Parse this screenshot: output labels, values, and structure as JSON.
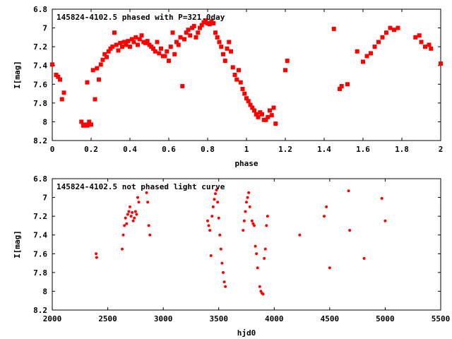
{
  "chart_data": [
    {
      "type": "scatter",
      "title": "145824-4102.5 phased with P=321.0day",
      "xlabel": "phase",
      "ylabel": "I[mag]",
      "xlim": [
        0,
        2
      ],
      "ylim": [
        8.2,
        6.8
      ],
      "y_inverted": true,
      "xticks": [
        "0",
        "0.2",
        "0.4",
        "0.6",
        "0.8",
        "1",
        "1.2",
        "1.4",
        "1.6",
        "1.8",
        "2"
      ],
      "yticks": [
        "6.8",
        "7",
        "7.2",
        "7.4",
        "7.6",
        "7.8",
        "8",
        "8.2"
      ],
      "marker": "star",
      "color": "#ff0000",
      "series": [
        {
          "x": [
            0.0,
            0.02,
            0.03,
            0.04,
            0.05,
            0.06,
            0.15,
            0.16,
            0.17,
            0.18,
            0.19,
            0.2,
            0.18,
            0.22,
            0.21,
            0.23,
            0.24,
            0.25,
            0.26,
            0.27,
            0.28,
            0.29,
            0.3,
            0.31,
            0.32,
            0.33,
            0.34,
            0.35,
            0.36,
            0.37,
            0.38,
            0.39,
            0.4,
            0.41,
            0.42,
            0.43,
            0.44,
            0.45,
            0.46,
            0.47,
            0.48,
            0.49,
            0.5,
            0.51,
            0.52,
            0.53,
            0.54,
            0.55,
            0.56,
            0.57,
            0.58,
            0.59,
            0.6,
            0.61,
            0.62,
            0.63,
            0.64,
            0.65,
            0.66,
            0.67,
            0.68,
            0.69,
            0.7,
            0.71,
            0.72,
            0.73,
            0.74,
            0.75,
            0.76,
            0.77,
            0.78,
            0.79,
            0.8,
            0.81,
            0.82,
            0.83,
            0.84,
            0.85,
            0.86,
            0.87,
            0.88,
            0.89,
            0.9,
            0.91,
            0.92,
            0.93,
            0.94,
            0.95,
            0.96,
            0.97,
            0.98,
            0.99,
            1.0,
            1.01,
            1.02,
            1.03,
            1.04,
            1.05,
            1.06,
            1.07,
            1.08,
            1.09,
            1.1,
            1.11,
            1.12,
            1.13,
            1.14,
            1.15,
            1.2,
            1.21,
            1.45,
            1.48,
            1.49,
            1.52,
            1.57,
            1.6,
            1.62,
            1.64,
            1.66,
            1.68,
            1.7,
            1.72,
            1.74,
            1.76,
            1.78,
            1.87,
            1.89,
            1.9,
            1.92,
            1.94,
            1.95,
            2.0
          ],
          "y": [
            7.39,
            7.5,
            7.52,
            7.55,
            7.76,
            7.69,
            8.0,
            8.04,
            8.03,
            8.04,
            8.0,
            8.03,
            7.58,
            7.76,
            7.45,
            7.43,
            7.55,
            7.39,
            7.34,
            7.28,
            7.31,
            7.25,
            7.22,
            7.2,
            7.05,
            7.18,
            7.24,
            7.16,
            7.2,
            7.15,
            7.18,
            7.14,
            7.2,
            7.12,
            7.15,
            7.1,
            7.18,
            7.12,
            7.08,
            7.15,
            7.16,
            7.14,
            7.18,
            7.2,
            7.22,
            7.25,
            7.15,
            7.27,
            7.22,
            7.3,
            7.3,
            7.25,
            7.35,
            7.2,
            7.05,
            7.28,
            7.15,
            7.18,
            7.1,
            7.62,
            7.12,
            7.05,
            7.02,
            7.08,
            7.0,
            6.98,
            7.1,
            7.05,
            7.0,
            6.97,
            6.94,
            6.92,
            6.95,
            6.96,
            6.93,
            6.95,
            7.05,
            7.1,
            7.15,
            7.2,
            7.28,
            7.35,
            7.22,
            7.15,
            7.25,
            7.42,
            7.5,
            7.55,
            7.45,
            7.58,
            7.65,
            7.7,
            7.75,
            7.78,
            7.82,
            7.85,
            7.88,
            7.92,
            7.95,
            7.9,
            7.92,
            7.98,
            7.98,
            7.95,
            7.88,
            7.93,
            7.85,
            8.02,
            7.45,
            7.35,
            7.01,
            7.65,
            7.62,
            7.6,
            7.25,
            7.36,
            7.3,
            7.27,
            7.2,
            7.15,
            7.1,
            7.05,
            7.0,
            7.02,
            7.0,
            7.1,
            7.08,
            7.15,
            7.2,
            7.18,
            7.22,
            7.38
          ]
        }
      ]
    },
    {
      "type": "scatter",
      "title": "145824-4102.5 not phased light curve",
      "xlabel": "hjd0",
      "ylabel": "I[mag]",
      "xlim": [
        2000,
        5500
      ],
      "ylim": [
        8.2,
        6.8
      ],
      "y_inverted": true,
      "xticks": [
        "2000",
        "2500",
        "3000",
        "3500",
        "4000",
        "4500",
        "5000",
        "5500"
      ],
      "yticks": [
        "6.8",
        "7",
        "7.2",
        "7.4",
        "7.6",
        "7.8",
        "8",
        "8.2"
      ],
      "marker": "dot",
      "color": "#ff0000",
      "series": [
        {
          "x": [
            2395,
            2400,
            2630,
            2640,
            2650,
            2660,
            2670,
            2680,
            2690,
            2700,
            2710,
            2720,
            2730,
            2740,
            2750,
            2760,
            2770,
            2780,
            2850,
            2860,
            2870,
            2880,
            3400,
            3410,
            3420,
            3430,
            3440,
            3450,
            3460,
            3470,
            3480,
            3490,
            3500,
            3510,
            3520,
            3530,
            3540,
            3550,
            3560,
            3720,
            3730,
            3740,
            3750,
            3760,
            3770,
            3780,
            3800,
            3810,
            3820,
            3830,
            3840,
            3850,
            3870,
            3880,
            3890,
            3900,
            3910,
            3920,
            3930,
            3940,
            4230,
            4450,
            4470,
            4500,
            4670,
            4680,
            4810,
            4970,
            5000
          ],
          "y": [
            7.6,
            7.64,
            7.55,
            7.4,
            7.3,
            7.22,
            7.28,
            7.18,
            7.15,
            7.1,
            7.2,
            7.16,
            7.25,
            7.22,
            7.15,
            7.18,
            7.0,
            7.05,
            6.95,
            7.05,
            7.3,
            7.4,
            7.25,
            7.3,
            7.35,
            7.62,
            7.2,
            7.1,
            7.02,
            6.96,
            6.92,
            7.05,
            7.22,
            7.4,
            7.55,
            7.7,
            7.8,
            7.9,
            7.95,
            7.35,
            7.25,
            7.15,
            7.05,
            7.0,
            6.95,
            7.1,
            7.25,
            7.28,
            7.3,
            7.52,
            7.6,
            7.75,
            7.95,
            8.0,
            8.02,
            8.03,
            7.65,
            7.55,
            7.3,
            7.2,
            7.4,
            7.2,
            7.1,
            7.75,
            6.93,
            7.35,
            7.65,
            7.01,
            7.25
          ]
        }
      ]
    }
  ]
}
